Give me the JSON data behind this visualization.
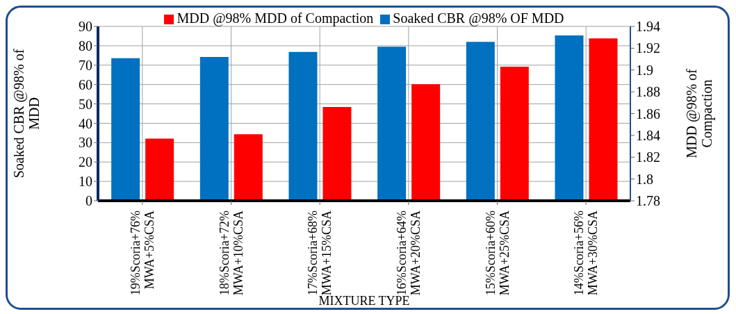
{
  "chart_data": {
    "type": "bar",
    "categories": [
      "19%Scoria+76% MWA+5%CSA",
      "18%Scoria+72% MWA+10%CSA",
      "17%Scoria+68% MWA+15%CSA",
      "16%Scoria+64% MWA+20%CSA",
      "15%Scoria+60% MWA+25%CSA",
      "14%Scoria+56% MWA+30%CSA"
    ],
    "series": [
      {
        "name": "Soaked CBR @98% OF MDD",
        "color": "#0070c0",
        "values": [
          73.6,
          74.2,
          76.8,
          79.5,
          82,
          85.3
        ]
      },
      {
        "name": "MDD @98% MDD of Compaction",
        "color": "#ff0000",
        "axis": "y2",
        "values": [
          1.837,
          1.841,
          1.866,
          1.887,
          1.903,
          1.929
        ]
      }
    ],
    "xlabel": "MIXTURE TYPE",
    "ylabel": "Soaked CBR @98% of MDD",
    "y2label": "MDD @98% of Compaction",
    "ylim": [
      0,
      90
    ],
    "yticks": [
      0,
      10,
      20,
      30,
      40,
      50,
      60,
      70,
      80,
      90
    ],
    "y2lim": [
      1.78,
      1.94
    ],
    "y2ticks": [
      1.78,
      1.8,
      1.82,
      1.84,
      1.86,
      1.88,
      1.9,
      1.92,
      1.94
    ],
    "grid": true,
    "legend": "top"
  }
}
